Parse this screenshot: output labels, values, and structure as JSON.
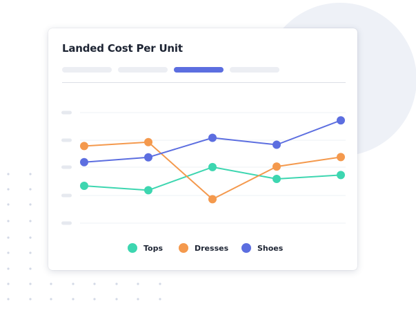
{
  "colors": {
    "tops": "#3dd6b0",
    "dresses": "#f4994d",
    "shoes": "#5c6ee0",
    "tab_inactive": "#eceef3",
    "tab_active": "#5c6ee0",
    "background_circle": "#eef1f7"
  },
  "tabs": [
    {
      "active": false
    },
    {
      "active": false
    },
    {
      "active": true
    },
    {
      "active": false
    }
  ],
  "chart_data": {
    "type": "line",
    "title": "Landed Cost Per Unit",
    "xlabel": "",
    "ylabel": "",
    "x": [
      1,
      2,
      3,
      4,
      5
    ],
    "ylim": [
      0,
      4.3
    ],
    "grid": true,
    "y_tick_labels": [
      "",
      "",
      "",
      "",
      ""
    ],
    "legend_position": "bottom",
    "series": [
      {
        "name": "Tops",
        "values": [
          1.45,
          1.28,
          2.18,
          1.72,
          1.87
        ]
      },
      {
        "name": "Dresses",
        "values": [
          3.0,
          3.15,
          0.93,
          2.2,
          2.57
        ]
      },
      {
        "name": "Shoes",
        "values": [
          2.37,
          2.56,
          3.32,
          3.05,
          4.0
        ]
      }
    ]
  }
}
